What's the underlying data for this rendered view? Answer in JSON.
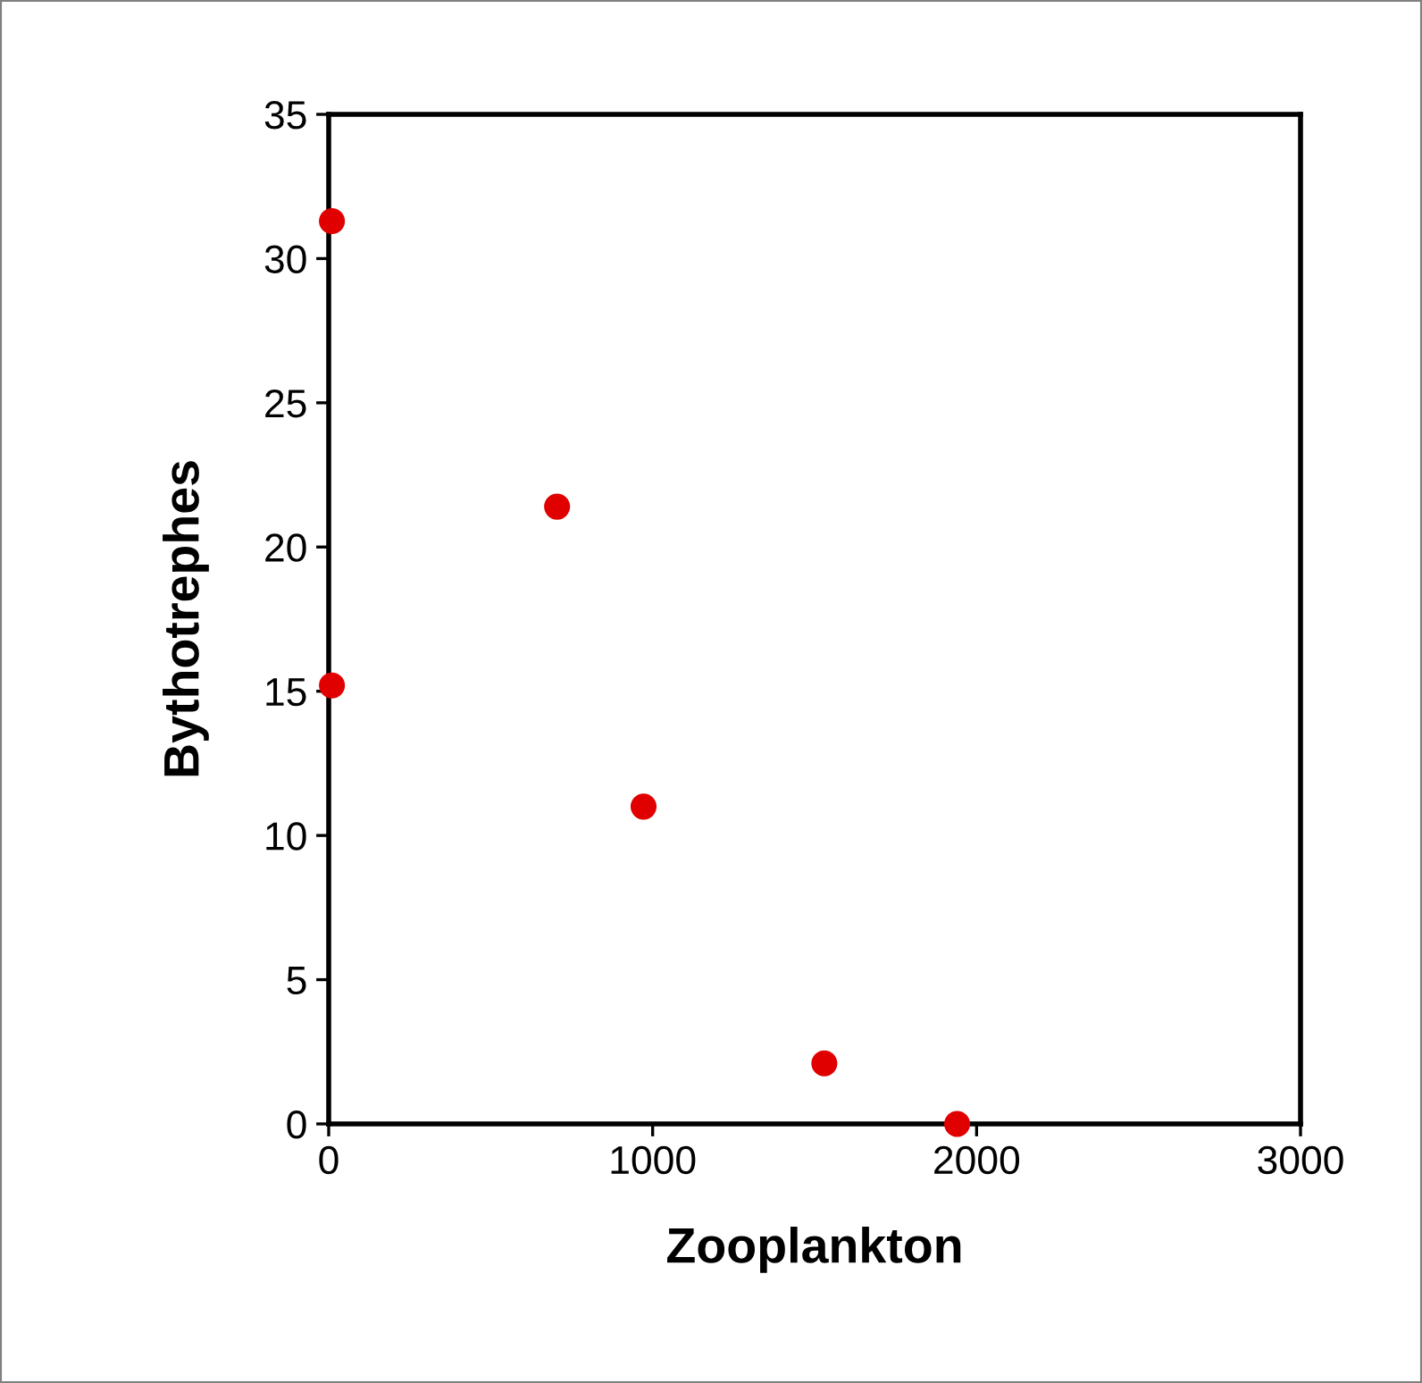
{
  "chart_data": {
    "type": "scatter",
    "xlabel": "Zooplankton",
    "ylabel": "Bythotrephes",
    "x": [
      10,
      10,
      705,
      972,
      1530,
      1940
    ],
    "values": [
      31.3,
      15.2,
      21.4,
      11.0,
      2.1,
      0
    ],
    "color": "#e00000",
    "marker": "circle",
    "xlim": [
      0,
      3000
    ],
    "xticks": [
      0,
      1000,
      2000,
      3000
    ],
    "ylim": [
      0,
      35
    ],
    "yticks": [
      0,
      5,
      10,
      15,
      20,
      25,
      30,
      35
    ],
    "grid": false,
    "legend": false
  }
}
